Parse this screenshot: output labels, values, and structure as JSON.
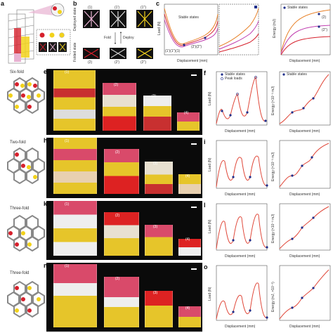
{
  "panels": {
    "a": "a",
    "b": "b",
    "c": "c",
    "e": "e",
    "f": "f",
    "h": "h",
    "i": "i",
    "k": "k",
    "l": "l",
    "n": "n",
    "o": "o"
  },
  "b_texts": {
    "deployed": "Deployed state",
    "folded": "Folded state",
    "fold": "Fold",
    "deploy": "Deploy",
    "t1": "(1)",
    "t1p": "(1')",
    "t1pp": "(1'')",
    "t2": "(2)",
    "t2p": "(2')",
    "t2pp": "(2'')"
  },
  "symmetry": [
    "Six-fold",
    "Two-fold",
    "Three-fold",
    "Three-fold"
  ],
  "stages": [
    "(1)",
    "(2)",
    "(3)",
    "(4)"
  ],
  "c_texts": {
    "legend": "Stable states",
    "ylabel": "Load (N)",
    "xlabel": "Displacement (mm)",
    "ylabel2": "Energy (mJ)",
    "s1": "(1')(1'')(1)",
    "s2": "(2')(2'')",
    "s3": "(2)",
    "s4": "(2'')",
    "yt_load": [
      "0.6",
      "0.4",
      "0.2",
      "0.0",
      "-0.2"
    ],
    "yt_energy": [
      "0",
      "5",
      "10",
      "15",
      "20"
    ],
    "xt": [
      "0",
      "10",
      "20",
      "30"
    ]
  },
  "f_texts": {
    "stable": "Stable states",
    "peak": "Peak loads",
    "ylabel": "Load (N)",
    "ylabel2": "Energy (×10⁻³ mJ)",
    "xlabel": "Displacement (mm)",
    "xt": [
      "0",
      "20",
      "40",
      "60",
      "80",
      "100"
    ],
    "yt_load": [
      "0",
      "5",
      "10",
      "15",
      "20",
      "25"
    ],
    "yt_energy": [
      "0",
      "5",
      "10",
      "15",
      "20"
    ],
    "states": [
      "1°",
      "2°",
      "3°",
      "(1)",
      "(2)",
      "(3)",
      "(4)"
    ]
  },
  "i_texts": {
    "ylabel": "Load (N)",
    "ylabel2": "Energy (×10⁻³ mJ)",
    "xlabel": "Displacement (mm)",
    "xt": [
      "0",
      "20",
      "40",
      "60",
      "80"
    ],
    "yt_load": [
      "0",
      "2",
      "4",
      "6"
    ],
    "yt_energy": [
      "0",
      "5",
      "10",
      "15",
      "20"
    ],
    "states": [
      "1°",
      "2°",
      "3°",
      "(1)",
      "(2)",
      "(3)",
      "(4)"
    ]
  },
  "l_texts": {
    "ylabel": "Load (N)",
    "ylabel2": "Energy (×10⁻³ mJ)",
    "xlabel": "Displacement (mm)",
    "xt": [
      "0",
      "20",
      "40",
      "60",
      "80"
    ],
    "yt_load": [
      "0",
      "2",
      "4",
      "6",
      "8"
    ],
    "yt_energy": [
      "0",
      "5",
      "10",
      "15",
      "20"
    ],
    "states": [
      "1°",
      "2°",
      "3°",
      "(1)",
      "(2)",
      "(3)",
      "(4)"
    ]
  },
  "o_texts": {
    "ylabel": "Load (N)",
    "ylabel2": "Energy (mJ, ×10⁻³)",
    "xlabel": "Displacement (mm)",
    "xt": [
      "0",
      "20",
      "40",
      "60",
      "80"
    ],
    "yt_load": [
      "0",
      "5",
      "10",
      "15",
      "20"
    ],
    "yt_energy": [
      "0",
      "5",
      "10",
      "15",
      "20"
    ],
    "states": [
      "1°",
      "2°",
      "3°",
      "(1)",
      "(2)",
      "(3)",
      "(4)"
    ]
  },
  "colors": {
    "curve": "#e0483a",
    "stable": "#1f2e8a",
    "red": "#d6202c",
    "yellow": "#f2d21b",
    "pink": "#e8b2d2",
    "gray": "#9a9a9a"
  }
}
